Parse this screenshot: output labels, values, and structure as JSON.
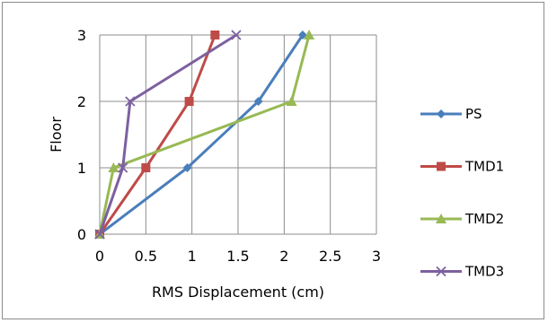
{
  "chart_data": {
    "type": "line",
    "title": "",
    "xlabel": "RMS Displacement (cm)",
    "ylabel": "Floor",
    "xlim": [
      0,
      3
    ],
    "ylim": [
      0,
      3
    ],
    "x_ticks": [
      "0",
      "0.5",
      "1",
      "1.5",
      "2",
      "2.5",
      "3"
    ],
    "y_ticks": [
      "0",
      "1",
      "2",
      "3"
    ],
    "grid": true,
    "legend_position": "right",
    "series": [
      {
        "name": "PS",
        "color": "#4a7ebb",
        "marker": "diamond",
        "points": [
          [
            0,
            0
          ],
          [
            0.95,
            1
          ],
          [
            1.72,
            2
          ],
          [
            2.2,
            3
          ]
        ]
      },
      {
        "name": "TMD1",
        "color": "#be4b48",
        "marker": "square",
        "points": [
          [
            0,
            0
          ],
          [
            0.5,
            1
          ],
          [
            0.97,
            2
          ],
          [
            1.25,
            3
          ]
        ]
      },
      {
        "name": "TMD2",
        "color": "#98b954",
        "marker": "triangle",
        "points": [
          [
            0,
            0
          ],
          [
            0.15,
            1
          ],
          [
            2.08,
            2
          ],
          [
            2.27,
            3
          ]
        ]
      },
      {
        "name": "TMD3",
        "color": "#7d60a0",
        "marker": "x",
        "points": [
          [
            0,
            0
          ],
          [
            0.25,
            1
          ],
          [
            0.33,
            2
          ],
          [
            1.48,
            3
          ]
        ]
      }
    ]
  }
}
